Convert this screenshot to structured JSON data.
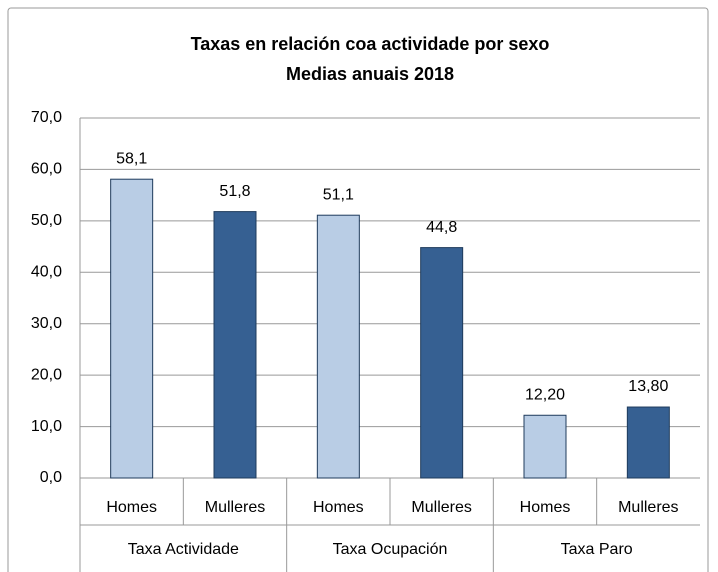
{
  "chart_data": {
    "type": "bar",
    "title": "Taxas en relación coa actividade  por sexo",
    "subtitle": "Medias anuais 2018",
    "categories": [
      "Homes",
      "Mulleres",
      "Homes",
      "Mulleres",
      "Homes",
      "Mulleres"
    ],
    "groups": [
      "Taxa Actividade",
      "Taxa Ocupación",
      "Taxa Paro"
    ],
    "values": [
      58.1,
      51.8,
      51.1,
      44.8,
      12.2,
      13.8
    ],
    "value_labels": [
      "58,1",
      "51,8",
      "51,1",
      "44,8",
      "12,20",
      "13,80"
    ],
    "colors": [
      "#b9cde5",
      "#366092",
      "#b9cde5",
      "#366092",
      "#b9cde5",
      "#366092"
    ],
    "ylim": [
      0,
      70
    ],
    "yticks": [
      {
        "value": 0,
        "label": "0,0"
      },
      {
        "value": 10,
        "label": "10,0"
      },
      {
        "value": 20,
        "label": "20,0"
      },
      {
        "value": 30,
        "label": "30,0"
      },
      {
        "value": 40,
        "label": "40,0"
      },
      {
        "value": 50,
        "label": "50,0"
      },
      {
        "value": 60,
        "label": "60,0"
      },
      {
        "value": 70,
        "label": "70,0"
      }
    ],
    "grid": true
  }
}
